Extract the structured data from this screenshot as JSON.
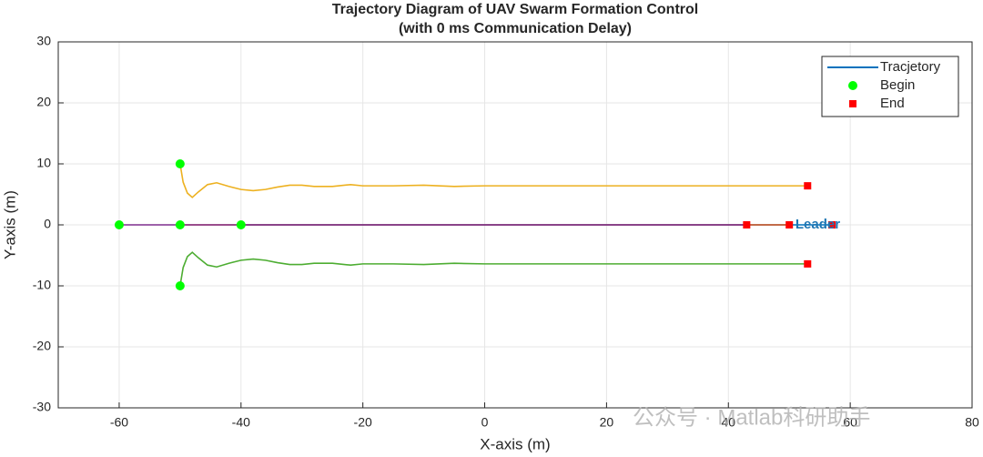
{
  "chart_data": {
    "type": "line",
    "title": [
      "Trajectory Diagram of UAV Swarm Formation Control",
      "(with 0 ms Communication Delay)"
    ],
    "xlabel": "X-axis (m)",
    "ylabel": "Y-axis (m)",
    "xlim": [
      -70,
      80
    ],
    "xticks": [
      -60,
      -40,
      -20,
      0,
      20,
      40,
      60,
      80
    ],
    "ylim": [
      -30,
      30
    ],
    "yticks": [
      -30,
      -20,
      -10,
      0,
      10,
      20,
      30
    ],
    "grid": true,
    "legend_location": "northeast",
    "legend": [
      "Tracjetory",
      "Begin",
      "End"
    ],
    "legend_color": "#0072bd",
    "begin_color": "#00ff00",
    "end_color": "#ff0000",
    "series": [
      {
        "color": "#0072bd",
        "x": [
          -40,
          57
        ],
        "y": [
          0,
          0
        ]
      },
      {
        "color": "#d95319",
        "x": [
          -50,
          50
        ],
        "y": [
          0,
          0
        ]
      },
      {
        "color": "#edb120",
        "x": [
          -50,
          -49.5,
          -48.8,
          -48,
          -47,
          -45.5,
          -44,
          -42,
          -40,
          -38,
          -36,
          -34,
          -32,
          -30,
          -28,
          -25,
          -22,
          -20,
          -15,
          -10,
          -5,
          0,
          10,
          20,
          30,
          40,
          53
        ],
        "y": [
          10,
          7,
          5.2,
          4.5,
          5.4,
          6.6,
          6.9,
          6.3,
          5.8,
          5.6,
          5.8,
          6.2,
          6.5,
          6.5,
          6.3,
          6.3,
          6.6,
          6.4,
          6.4,
          6.5,
          6.3,
          6.4,
          6.4,
          6.4,
          6.4,
          6.4,
          6.4
        ]
      },
      {
        "color": "#7e2f8e",
        "x": [
          -60,
          43
        ],
        "y": [
          0,
          0
        ]
      },
      {
        "color": "#4dad32",
        "x": [
          -50,
          -49.5,
          -48.8,
          -48,
          -47,
          -45.5,
          -44,
          -42,
          -40,
          -38,
          -36,
          -34,
          -32,
          -30,
          -28,
          -25,
          -22,
          -20,
          -15,
          -10,
          -5,
          0,
          10,
          20,
          30,
          40,
          53
        ],
        "y": [
          -10,
          -7,
          -5.2,
          -4.5,
          -5.4,
          -6.6,
          -6.9,
          -6.3,
          -5.8,
          -5.6,
          -5.8,
          -6.2,
          -6.5,
          -6.5,
          -6.3,
          -6.3,
          -6.6,
          -6.4,
          -6.4,
          -6.5,
          -6.3,
          -6.4,
          -6.4,
          -6.4,
          -6.4,
          -6.4,
          -6.4
        ]
      }
    ],
    "annotation": {
      "text": "Leader",
      "x": 51,
      "y": 0,
      "color": "#1f77b4"
    },
    "watermark": "公众号 · Matlab科研助手"
  }
}
